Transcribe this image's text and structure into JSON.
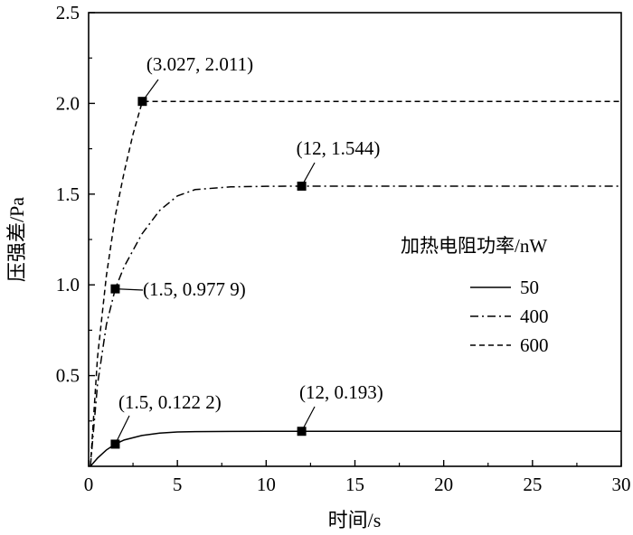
{
  "chart_data": {
    "type": "line",
    "xlabel": "时间/s",
    "ylabel": "压强差/Pa",
    "xlim": [
      0,
      30
    ],
    "ylim": [
      0,
      2.5
    ],
    "x_ticks": [
      "0",
      "5",
      "10",
      "15",
      "20",
      "25",
      "30"
    ],
    "y_ticks": [
      "0.5",
      "1.0",
      "1.5",
      "2.0",
      "2.5"
    ],
    "grid": false,
    "legend": {
      "title": "加热电阻功率/nW",
      "placement": "right",
      "entries": [
        {
          "label": "50",
          "style": "solid"
        },
        {
          "label": "400",
          "style": "dashdot"
        },
        {
          "label": "600",
          "style": "dashed"
        }
      ]
    },
    "series": [
      {
        "name": "50",
        "style": "solid",
        "points": [
          [
            0.1,
            0
          ],
          [
            0.5,
            0.045
          ],
          [
            1.0,
            0.09
          ],
          [
            1.5,
            0.1222
          ],
          [
            2,
            0.145
          ],
          [
            3,
            0.17
          ],
          [
            4,
            0.183
          ],
          [
            5,
            0.189
          ],
          [
            6,
            0.191
          ],
          [
            8,
            0.1925
          ],
          [
            10,
            0.193
          ],
          [
            12,
            0.193
          ],
          [
            20,
            0.193
          ],
          [
            30,
            0.193
          ]
        ]
      },
      {
        "name": "400",
        "style": "dashdot",
        "points": [
          [
            0.1,
            0
          ],
          [
            0.5,
            0.45
          ],
          [
            1.0,
            0.78
          ],
          [
            1.5,
            0.9779
          ],
          [
            2,
            1.1
          ],
          [
            3,
            1.28
          ],
          [
            4,
            1.41
          ],
          [
            5,
            1.49
          ],
          [
            6,
            1.525
          ],
          [
            8,
            1.54
          ],
          [
            10,
            1.543
          ],
          [
            12,
            1.544
          ],
          [
            20,
            1.544
          ],
          [
            30,
            1.544
          ]
        ]
      },
      {
        "name": "600",
        "style": "dashed",
        "points": [
          [
            0.1,
            0
          ],
          [
            0.5,
            0.6
          ],
          [
            1.0,
            1.05
          ],
          [
            1.5,
            1.38
          ],
          [
            2,
            1.62
          ],
          [
            2.5,
            1.83
          ],
          [
            3.027,
            2.011
          ],
          [
            10,
            2.011
          ],
          [
            20,
            2.011
          ],
          [
            30,
            2.011
          ]
        ]
      }
    ],
    "markers": [
      {
        "x": 3.027,
        "y": 2.011,
        "label": "(3.027, 2.011)"
      },
      {
        "x": 12,
        "y": 1.544,
        "label": "(12, 1.544)"
      },
      {
        "x": 1.5,
        "y": 0.9779,
        "label": "(1.5, 0.977 9)"
      },
      {
        "x": 1.5,
        "y": 0.1222,
        "label": "(1.5, 0.122 2)"
      },
      {
        "x": 12,
        "y": 0.193,
        "label": "(12, 0.193)"
      }
    ]
  }
}
